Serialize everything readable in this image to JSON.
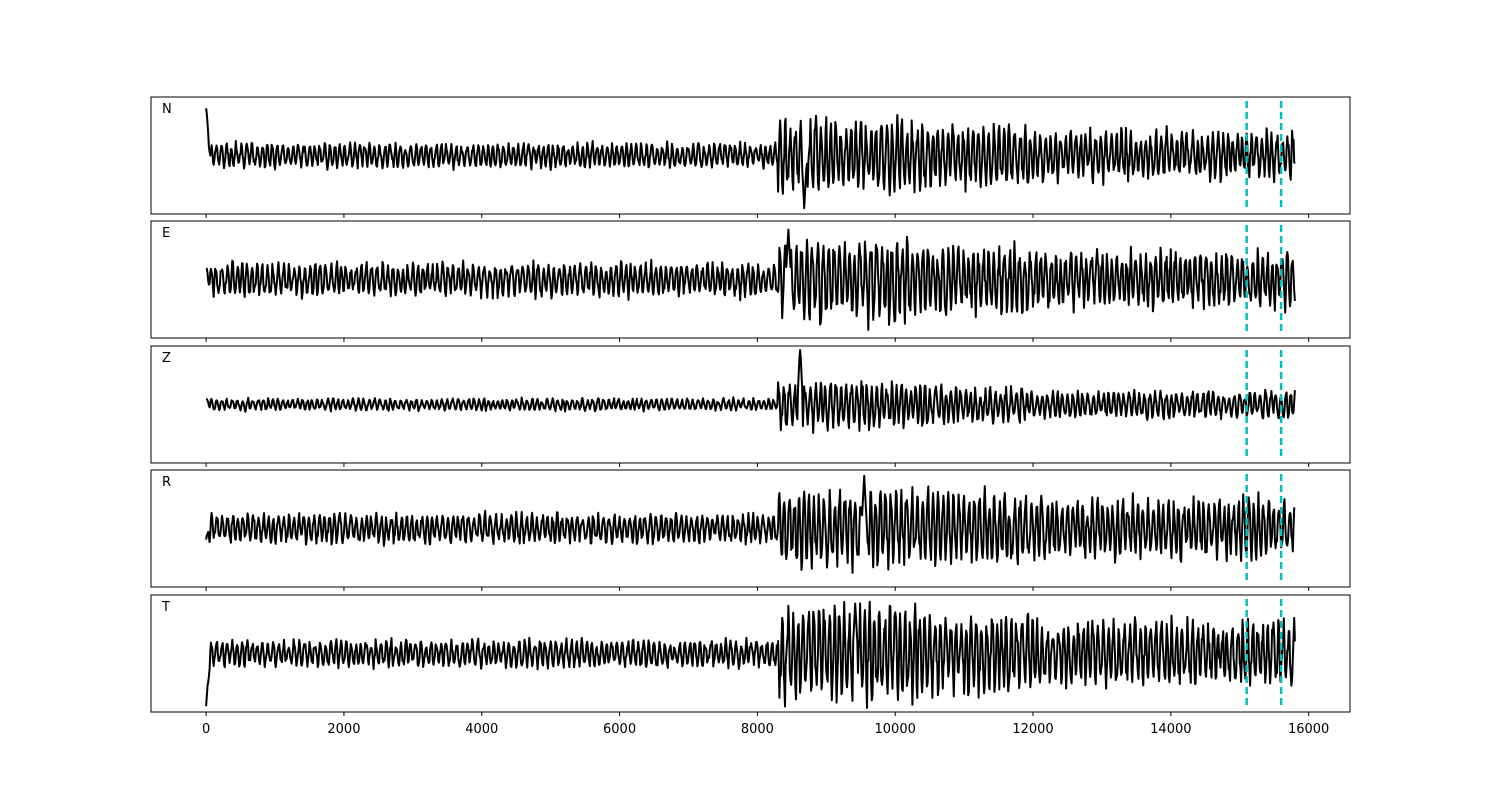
{
  "chart_data": {
    "type": "line",
    "layout": "stacked-subplots",
    "shared_x_axis": true,
    "xlim": [
      -800,
      16600
    ],
    "x_ticks": [
      0,
      2000,
      4000,
      6000,
      8000,
      10000,
      12000,
      14000,
      16000
    ],
    "x_tick_labels": [
      "0",
      "2000",
      "4000",
      "6000",
      "8000",
      "10000",
      "12000",
      "14000",
      "16000"
    ],
    "x_range": [
      0,
      15800
    ],
    "y_axis_visible": false,
    "grid": false,
    "colors": {
      "trace": "#000000",
      "marker": "#00bfbf"
    },
    "markers": [
      {
        "x": 15100,
        "style": "dashed"
      },
      {
        "x": 15600,
        "style": "dashed"
      }
    ],
    "panels": [
      {
        "label": "N",
        "ylim": [
          -1.0,
          1.0
        ],
        "noise_level": 0.18,
        "event_level": 0.55,
        "late_level": 0.36,
        "seed": 11,
        "start_spike": 0.85,
        "extreme": {
          "x": 8680,
          "value": -0.95
        }
      },
      {
        "label": "E",
        "ylim": [
          -1.0,
          1.0
        ],
        "noise_level": 0.25,
        "event_level": 0.62,
        "late_level": 0.42,
        "seed": 23,
        "start_spike": 0.2,
        "extreme": {
          "x": 8450,
          "value": 0.9
        }
      },
      {
        "label": "Z",
        "ylim": [
          -1.0,
          1.0
        ],
        "noise_level": 0.09,
        "event_level": 0.35,
        "late_level": 0.2,
        "seed": 37,
        "start_spike": 0.1,
        "extreme": {
          "x": 8620,
          "value": 1.1
        }
      },
      {
        "label": "R",
        "ylim": [
          -1.0,
          1.0
        ],
        "noise_level": 0.22,
        "event_level": 0.6,
        "late_level": 0.45,
        "seed": 41,
        "start_spike": -0.2,
        "extreme": {
          "x": 9550,
          "value": 0.95
        }
      },
      {
        "label": "T",
        "ylim": [
          -1.0,
          1.0
        ],
        "noise_level": 0.2,
        "event_level": 0.72,
        "late_level": 0.48,
        "seed": 53,
        "start_spike": -0.95,
        "extreme": {
          "x": 9420,
          "value": 0.9
        }
      }
    ]
  }
}
